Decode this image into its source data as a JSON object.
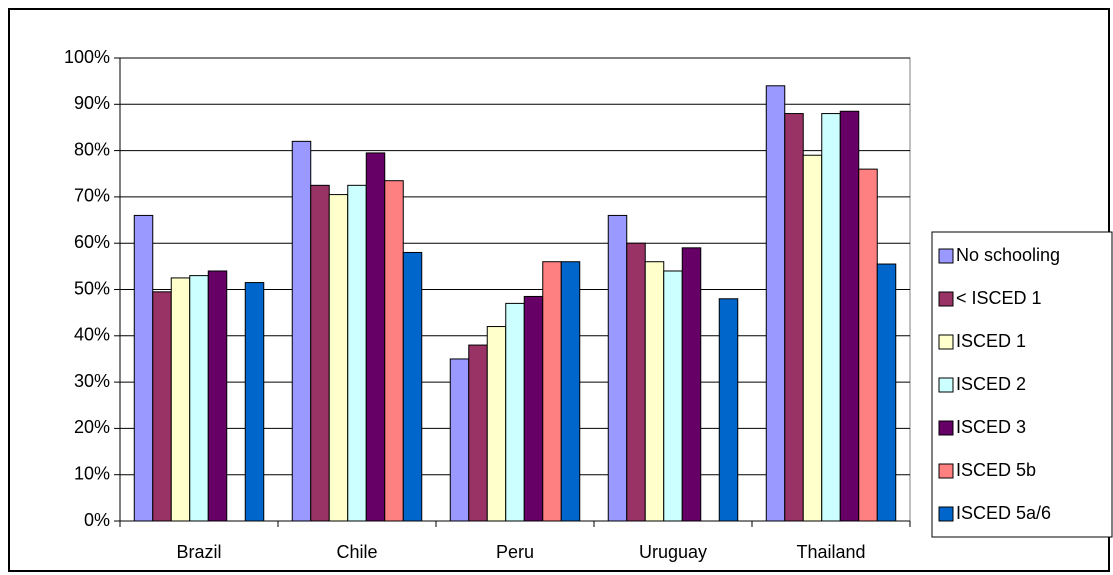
{
  "chart_data": {
    "type": "bar",
    "categories": [
      "Brazil",
      "Chile",
      "Peru",
      "Uruguay",
      "Thailand"
    ],
    "series": [
      {
        "name": "No schooling",
        "color": "#9999FF",
        "values": [
          66,
          82,
          35,
          66,
          94
        ]
      },
      {
        "name": "< ISCED 1",
        "color": "#993366",
        "values": [
          49.5,
          72.5,
          38,
          60,
          88
        ]
      },
      {
        "name": "ISCED 1",
        "color": "#FFFFCC",
        "values": [
          52.5,
          70.5,
          42,
          56,
          79
        ]
      },
      {
        "name": "ISCED 2",
        "color": "#CCFFFF",
        "values": [
          53,
          72.5,
          47,
          54,
          88
        ]
      },
      {
        "name": "ISCED 3",
        "color": "#660066",
        "values": [
          54,
          79.5,
          48.5,
          59,
          88.5
        ]
      },
      {
        "name": "ISCED 5b",
        "color": "#FF8080",
        "values": [
          null,
          73.5,
          56,
          null,
          76
        ]
      },
      {
        "name": "ISCED 5a/6",
        "color": "#0066CC",
        "values": [
          51.5,
          58,
          56,
          48,
          55.5
        ]
      }
    ],
    "ylim": [
      0,
      100
    ],
    "yticks": [
      {
        "value": 0,
        "label": "0%"
      },
      {
        "value": 10,
        "label": "10%"
      },
      {
        "value": 20,
        "label": "20%"
      },
      {
        "value": 30,
        "label": "30%"
      },
      {
        "value": 40,
        "label": "40%"
      },
      {
        "value": 50,
        "label": "50%"
      },
      {
        "value": 60,
        "label": "60%"
      },
      {
        "value": 70,
        "label": "70%"
      },
      {
        "value": 80,
        "label": "80%"
      },
      {
        "value": 90,
        "label": "90%"
      },
      {
        "value": 100,
        "label": "100%"
      }
    ],
    "grid": true,
    "legend": "right"
  }
}
